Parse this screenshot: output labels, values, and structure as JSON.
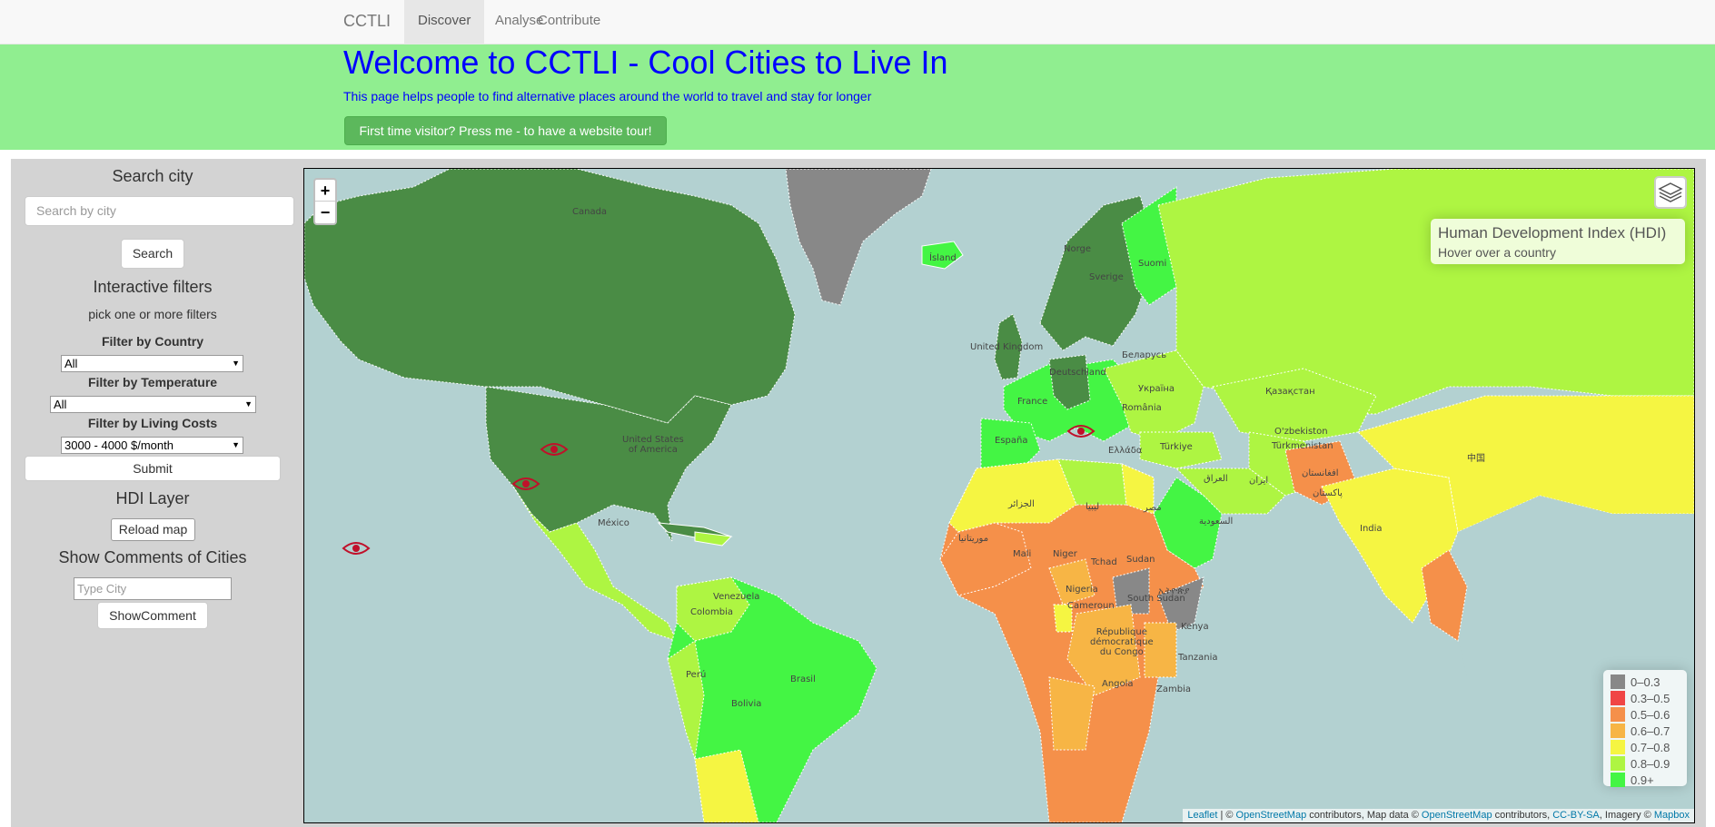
{
  "navbar": {
    "brand": "CCTLI",
    "tabs": [
      "Discover",
      "Analyse",
      "Contribute"
    ]
  },
  "hero": {
    "title": "Welcome to CCTLI - Cool Cities to Live In",
    "subtitle": "This page helps people to find alternative places around the world to travel and stay for longer",
    "tour_button": "First time visitor? Press me - to have a website tour!"
  },
  "sidebar": {
    "search_heading": "Search city",
    "search_placeholder": "Search by city",
    "search_button": "Search",
    "filters_heading": "Interactive filters",
    "filters_hint": "pick one or more filters",
    "country_label": "Filter by Country",
    "country_value": "All",
    "temperature_label": "Filter by Temperature",
    "temperature_value": "All",
    "costs_label": "Filter by Living Costs",
    "costs_value": "3000 - 4000 $/month",
    "submit_button": "Submit",
    "hdi_heading": "HDI Layer",
    "reload_button": "Reload map",
    "comments_heading": "Show Comments of Cities",
    "city_placeholder": "Type City",
    "show_comment_button": "ShowComment"
  },
  "map": {
    "zoom_in": "+",
    "zoom_out": "−",
    "info_title": "Human Development Index (HDI)",
    "info_hint": "Hover over a country",
    "legend": [
      {
        "label": "0–0.3",
        "color": "#888888"
      },
      {
        "label": "0.3–0.5",
        "color": "#f04545"
      },
      {
        "label": "0.5–0.6",
        "color": "#f5904a"
      },
      {
        "label": "0.6–0.7",
        "color": "#f7b545"
      },
      {
        "label": "0.7–0.8",
        "color": "#f5f542"
      },
      {
        "label": "0.8–0.9",
        "color": "#aef542"
      },
      {
        "label": "0.9+",
        "color": "#44f544"
      }
    ],
    "attribution": {
      "leaflet": "Leaflet",
      "sep1": " | © ",
      "osm1": "OpenStreetMap",
      "mid1": " contributors, Map data © ",
      "osm2": "OpenStreetMap",
      "mid2": " contributors, ",
      "license": "CC-BY-SA",
      "mid3": ", Imagery © ",
      "mapbox": "Mapbox"
    },
    "labels": {
      "usa": "United States\nof America",
      "mexico": "México",
      "island": "Ísland",
      "uk": "United Kingdom",
      "france": "France",
      "espana": "España",
      "deutschland": "Deutschland",
      "ukraina": "Україна",
      "kazakhstan": "Қазақстан",
      "turkiye": "Türkiye",
      "mali": "Mali",
      "niger": "Niger",
      "tchad": "Tchad",
      "sudan": "Sudan",
      "nigeria": "Nigeria",
      "south_sudan": "South Sudan",
      "kenya": "Kenya",
      "tanzania": "Tanzania",
      "congo": "République\ndémocratique\ndu Congo",
      "angola": "Angola",
      "zambia": "Zambia",
      "brasil": "Brasil",
      "colombia": "Colombia",
      "venezuela": "Venezuela",
      "peru": "Perú",
      "bolivia": "Bolivia",
      "india": "India",
      "suomi": "Suomi",
      "sverige": "Sverige",
      "turkmenistan": "Türkmenistan",
      "cameroun": "Cameroun",
      "egypt": "مصر",
      "saudi": "السعودية",
      "iran": "ایران",
      "libya": "ليبيا",
      "algeria": "الجزائر",
      "iraq": "العراق",
      "pakistan": "پاکستان",
      "afghanistan": "افغانستان",
      "uzbekistan": "O'zbekiston",
      "belarus": "Беларусь",
      "romania": "România",
      "ellada": "Ελλάδα",
      "mauritania": "موريتانيا",
      "ethiopia": "ኢትዮጵያ",
      "china": "中国",
      "norge": "Norge",
      "canada_frag": "Canada"
    }
  }
}
